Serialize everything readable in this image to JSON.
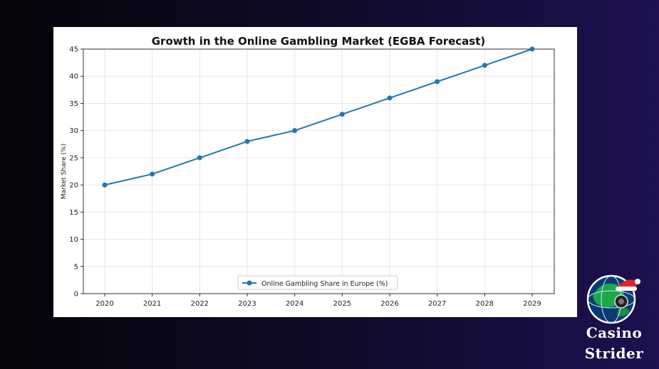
{
  "chart_data": {
    "type": "line",
    "title": "Growth in the Online Gambling Market (EGBA Forecast)",
    "xlabel": "",
    "ylabel": "Market Share (%)",
    "x": [
      "2020",
      "2021",
      "2022",
      "2023",
      "2024",
      "2025",
      "2026",
      "2027",
      "2028",
      "2029"
    ],
    "series": [
      {
        "name": "Online Gambling Share in Europe (%)",
        "values": [
          20,
          22,
          25,
          28,
          30,
          33,
          36,
          39,
          42,
          45
        ],
        "color": "#1f77b4"
      }
    ],
    "ylim": [
      0,
      45
    ],
    "yticks": [
      0,
      5,
      10,
      15,
      20,
      25,
      30,
      35,
      40,
      45
    ],
    "grid": true,
    "legend_position": "bottom-center"
  },
  "brand": {
    "line1": "Casino",
    "line2": "Strider",
    "logo_icon": "globe-with-santa-hat-icon",
    "text_color": "#ffffff"
  }
}
